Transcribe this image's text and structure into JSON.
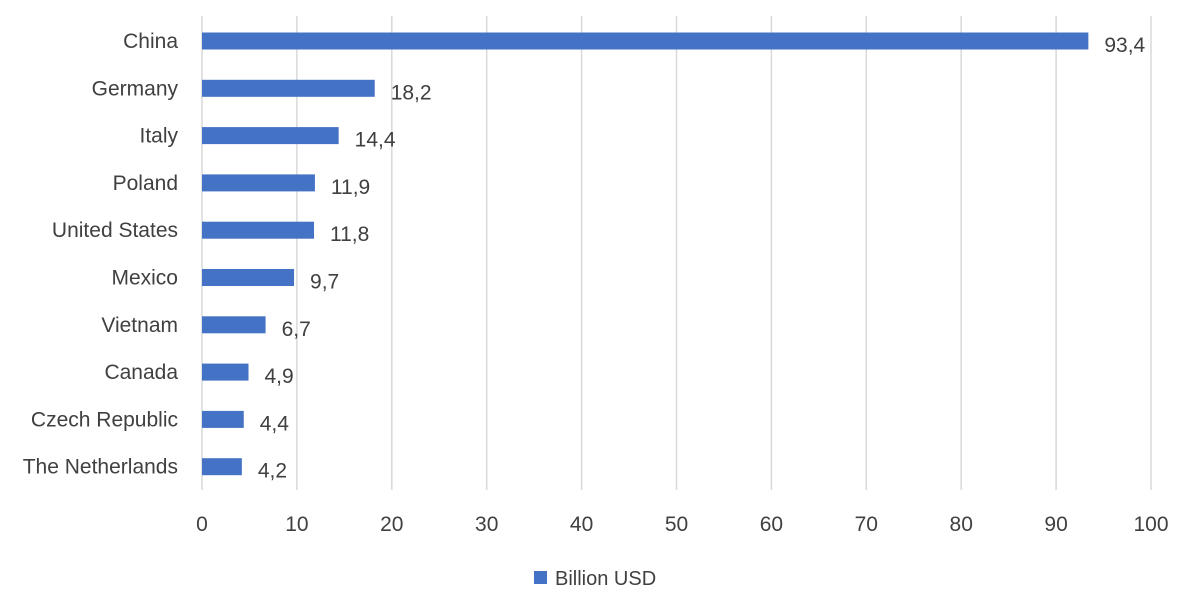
{
  "chart_data": {
    "type": "bar",
    "orientation": "horizontal",
    "title": "",
    "xlabel": "",
    "ylabel": "",
    "xlim": [
      0,
      100
    ],
    "x_ticks": [
      "0",
      "10",
      "20",
      "30",
      "40",
      "50",
      "60",
      "70",
      "80",
      "90",
      "100"
    ],
    "grid": true,
    "legend_position": "bottom",
    "bar_color": "#4472c4",
    "categories": [
      "China",
      "Germany",
      "Italy",
      "Poland",
      "United States",
      "Mexico",
      "Vietnam",
      "Canada",
      "Czech Republic",
      "The Netherlands"
    ],
    "series": [
      {
        "name": "Billion USD",
        "values": [
          93.4,
          18.2,
          14.4,
          11.9,
          11.8,
          9.7,
          6.7,
          4.9,
          4.4,
          4.2
        ],
        "labels": [
          "93,4",
          "18,2",
          "14,4",
          "11,9",
          "11,8",
          "9,7",
          "6,7",
          "4,9",
          "4,4",
          "4,2"
        ]
      }
    ]
  }
}
